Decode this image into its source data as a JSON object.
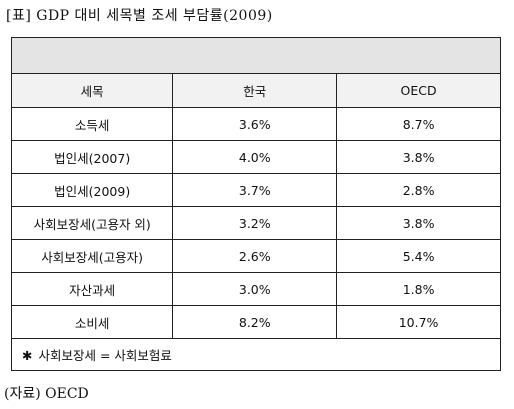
{
  "title": "[표] GDP 대비 세목별 조세 부담률(2009)",
  "table": {
    "headers": [
      "세목",
      "한국",
      "OECD"
    ],
    "rows": [
      {
        "item": "소득세",
        "korea": "3.6%",
        "oecd": "8.7%"
      },
      {
        "item": "법인세(2007)",
        "korea": "4.0%",
        "oecd": "3.8%"
      },
      {
        "item": "법인세(2009)",
        "korea": "3.7%",
        "oecd": "2.8%"
      },
      {
        "item": "사회보장세(고용자 외)",
        "korea": "3.2%",
        "oecd": "3.8%"
      },
      {
        "item": "사회보장세(고용자)",
        "korea": "2.6%",
        "oecd": "5.4%"
      },
      {
        "item": "자산과세",
        "korea": "3.0%",
        "oecd": "1.8%"
      },
      {
        "item": "소비세",
        "korea": "8.2%",
        "oecd": "10.7%"
      }
    ],
    "note_symbol": "✱",
    "note": "사회보장세 = 사회보험료"
  },
  "source": "(자료) OECD"
}
